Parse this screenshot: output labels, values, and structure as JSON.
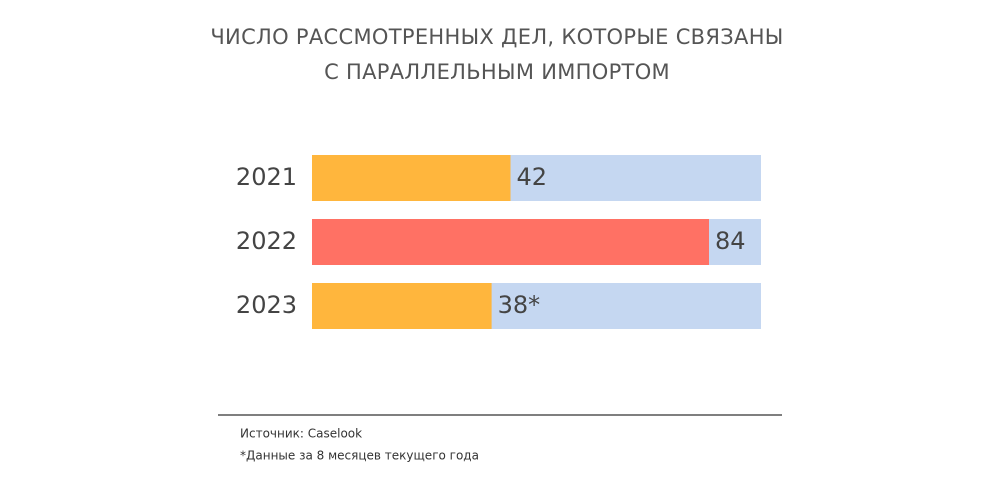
{
  "chart_data": {
    "type": "hbar",
    "title": [
      "ЧИСЛО РАССМОТРЕННЫХ ДЕЛ, КОТОРЫЕ СВЯЗАНЫ",
      "С ПАРАЛЛЕЛЬНЫМ ИМПОРТОМ"
    ],
    "categories": [
      "2021",
      "2022",
      "2023"
    ],
    "values": [
      42,
      84,
      38
    ],
    "value_labels": [
      "42",
      "84",
      "38*"
    ],
    "colors": [
      "#ffb63d",
      "#ff7164",
      "#ffb63d"
    ],
    "track_color": "#c5d7f1",
    "xlim": [
      0,
      95
    ],
    "source": "Источник: Caselook",
    "footnote": "*Данные за 8 месяцев текущего года"
  }
}
